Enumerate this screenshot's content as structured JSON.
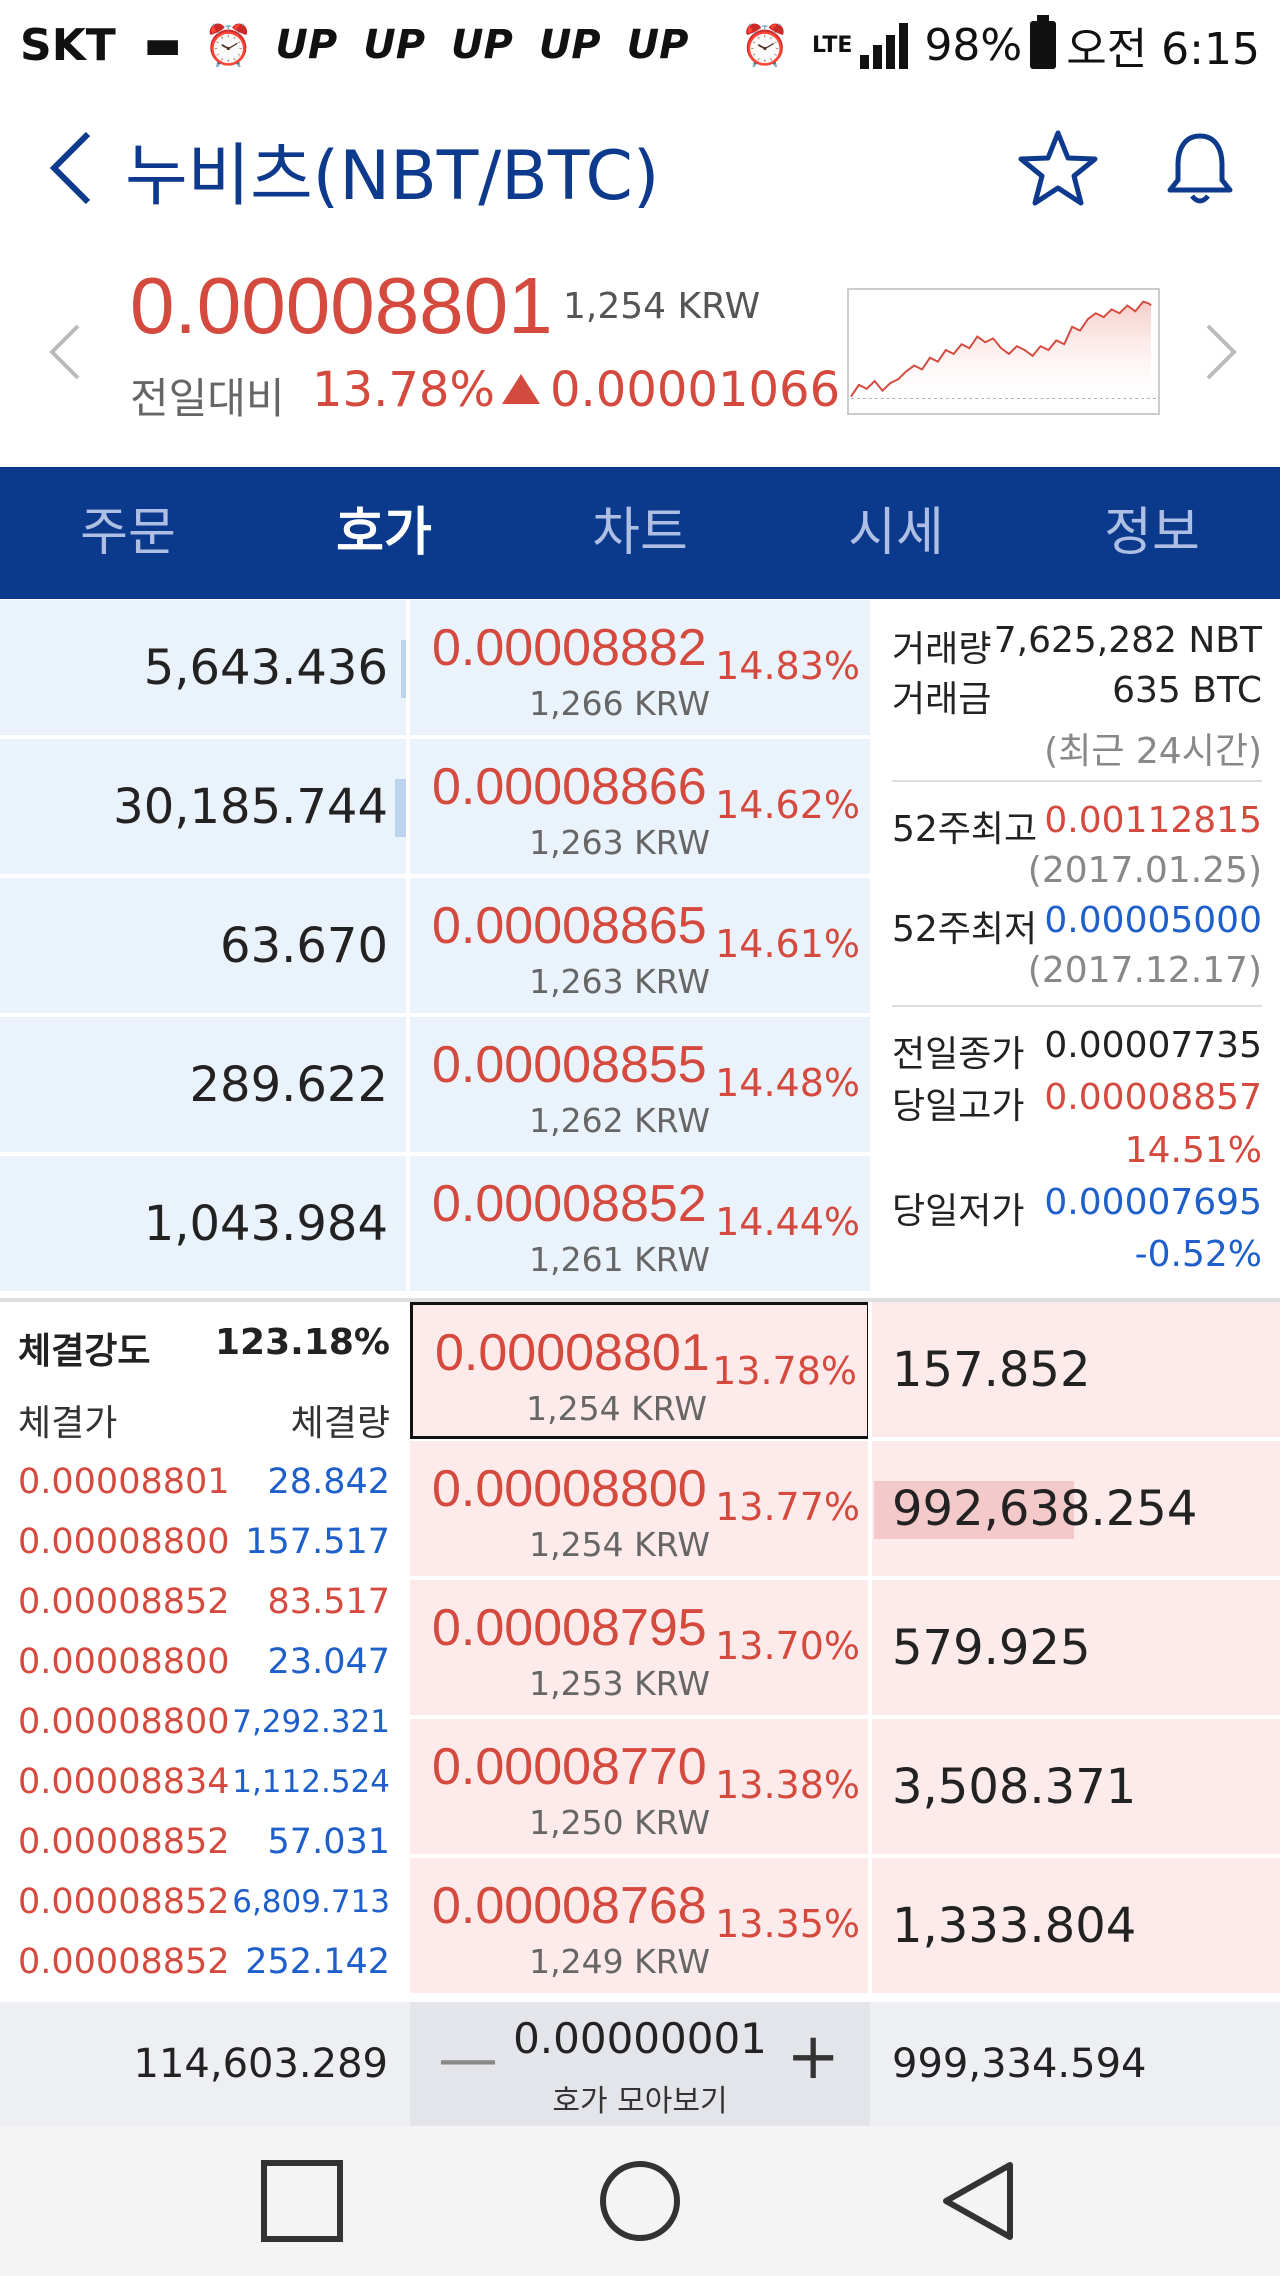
{
  "status": {
    "carrier": "SKT",
    "up_labels": [
      "UP",
      "UP",
      "UP",
      "UP",
      "UP"
    ],
    "network": "LTE",
    "battery": "98%",
    "time": "오전 6:15"
  },
  "header": {
    "title": "누비츠(NBT/BTC)"
  },
  "price": {
    "current": "0.00008801",
    "krw": "1,254 KRW",
    "change_label": "전일대비",
    "change_pct": "13.78%",
    "change_amount": "0.00001066"
  },
  "tabs": [
    {
      "label": "주문",
      "active": false
    },
    {
      "label": "호가",
      "active": true
    },
    {
      "label": "차트",
      "active": false
    },
    {
      "label": "시세",
      "active": false
    },
    {
      "label": "정보",
      "active": false
    }
  ],
  "asks": [
    {
      "qty": "5,643.436",
      "price": "0.00008882",
      "krw": "1,266 KRW",
      "pct": "14.83%",
      "depth": 0.005
    },
    {
      "qty": "30,185.744",
      "price": "0.00008866",
      "krw": "1,263 KRW",
      "pct": "14.62%",
      "depth": 0.03
    },
    {
      "qty": "63.670",
      "price": "0.00008865",
      "krw": "1,263 KRW",
      "pct": "14.61%",
      "depth": 0.0
    },
    {
      "qty": "289.622",
      "price": "0.00008855",
      "krw": "1,262 KRW",
      "pct": "14.48%",
      "depth": 0.0
    },
    {
      "qty": "1,043.984",
      "price": "0.00008852",
      "krw": "1,261 KRW",
      "pct": "14.44%",
      "depth": 0.0
    }
  ],
  "info": {
    "volume_label": "거래량",
    "volume": "7,625,282 NBT",
    "amount_label": "거래금",
    "amount": "635 BTC",
    "period_note": "(최근 24시간)",
    "high52_label": "52주최고",
    "high52": "0.00112815",
    "high52_date": "(2017.01.25)",
    "low52_label": "52주최저",
    "low52": "0.00005000",
    "low52_date": "(2017.12.17)",
    "prev_close_label": "전일종가",
    "prev_close": "0.00007735",
    "day_high_label": "당일고가",
    "day_high": "0.00008857",
    "day_high_pct": "14.51%",
    "day_low_label": "당일저가",
    "day_low": "0.00007695",
    "day_low_pct": "-0.52%"
  },
  "bids": [
    {
      "qty": "157.852",
      "price": "0.00008801",
      "krw": "1,254 KRW",
      "pct": "13.78%",
      "depth": 0.0,
      "current": true
    },
    {
      "qty": "992,638.254",
      "price": "0.00008800",
      "krw": "1,254 KRW",
      "pct": "13.77%",
      "depth": 0.5,
      "current": false
    },
    {
      "qty": "579.925",
      "price": "0.00008795",
      "krw": "1,253 KRW",
      "pct": "13.70%",
      "depth": 0.0,
      "current": false
    },
    {
      "qty": "3,508.371",
      "price": "0.00008770",
      "krw": "1,250 KRW",
      "pct": "13.38%",
      "depth": 0.0,
      "current": false
    },
    {
      "qty": "1,333.804",
      "price": "0.00008768",
      "krw": "1,249 KRW",
      "pct": "13.35%",
      "depth": 0.0,
      "current": false
    }
  ],
  "trades": {
    "strength_label": "체결강도",
    "strength": "123.18%",
    "price_head": "체결가",
    "qty_head": "체결량",
    "rows": [
      {
        "price": "0.00008801",
        "qty": "28.842"
      },
      {
        "price": "0.00008800",
        "qty": "157.517"
      },
      {
        "price": "0.00008852",
        "qty": "83.517"
      },
      {
        "price": "0.00008800",
        "qty": "23.047"
      },
      {
        "price": "0.00008800",
        "qty": "7,292.321"
      },
      {
        "price": "0.00008834",
        "qty": "1,112.524"
      },
      {
        "price": "0.00008852",
        "qty": "57.031"
      },
      {
        "price": "0.00008852",
        "qty": "6,809.713"
      },
      {
        "price": "0.00008852",
        "qty": "252.142"
      }
    ]
  },
  "footer": {
    "ask_total": "114,603.289",
    "unit": "0.00000001",
    "unit_label": "호가 모아보기",
    "bid_total": "999,334.594"
  },
  "colors": {
    "brand": "#0b3a8c",
    "up": "#d44a3e",
    "down": "#1f5fc9",
    "ask_bg": "#eaf3fc",
    "bid_bg": "#fdeaea"
  }
}
